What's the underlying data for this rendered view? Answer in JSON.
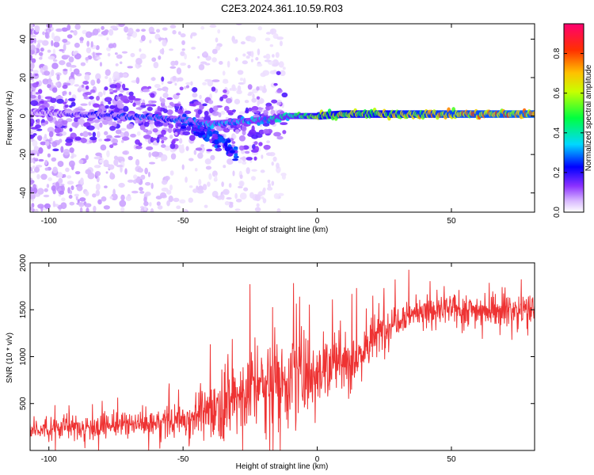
{
  "title": "C2E3.2024.361.10.59.R03",
  "chart_data": [
    {
      "type": "heatmap",
      "xlabel": "Height of straight line (km)",
      "ylabel": "Frequency (Hz)",
      "xlim": [
        -107,
        81
      ],
      "ylim": [
        -50,
        48
      ],
      "xticks": [
        -100,
        -50,
        0,
        50
      ],
      "yticks": [
        -40,
        -20,
        0,
        20,
        40
      ],
      "colorbar": {
        "label": "Normalized spectral amplitude",
        "range": [
          0,
          0.95
        ],
        "ticks": [
          0.0,
          0.2,
          0.4,
          0.6,
          0.8
        ],
        "colors": [
          "#ffffff",
          "#c090ff",
          "#6a00ff",
          "#0000ff",
          "#00ffff",
          "#00ff00",
          "#ffff00",
          "#ff8000",
          "#ff0000",
          "#ff0080"
        ]
      },
      "ridge": {
        "x": [
          -107,
          -90,
          -75,
          -60,
          -50,
          -40,
          -30,
          -20,
          -10,
          0,
          10,
          20,
          30,
          50,
          81
        ],
        "frequency": [
          2,
          1,
          0,
          -1,
          -2,
          -4,
          -3,
          -2,
          0,
          0,
          1,
          1,
          1,
          1,
          1
        ],
        "amplitude": [
          0.15,
          0.2,
          0.25,
          0.3,
          0.3,
          0.35,
          0.35,
          0.4,
          0.45,
          0.6,
          0.65,
          0.6,
          0.7,
          0.75,
          0.8
        ]
      },
      "branch": {
        "x": [
          -50,
          -42,
          -35,
          -30
        ],
        "frequency": [
          -2,
          -8,
          -14,
          -20
        ]
      }
    },
    {
      "type": "line",
      "xlabel": "Height of straight line (km)",
      "ylabel": "SNR (10 * v/v)",
      "xlim": [
        -107,
        81
      ],
      "ylim": [
        0,
        2000
      ],
      "xticks": [
        -100,
        -50,
        0,
        50
      ],
      "yticks": [
        500,
        1000,
        1500,
        2000
      ],
      "series": [
        {
          "color": "#ee3333",
          "x": [
            -107,
            -100,
            -90,
            -80,
            -70,
            -60,
            -55,
            -50,
            -45,
            -40,
            -35,
            -30,
            -25,
            -20,
            -15,
            -10,
            -5,
            0,
            5,
            10,
            15,
            20,
            25,
            30,
            35,
            40,
            50,
            60,
            70,
            81
          ],
          "mean": [
            240,
            250,
            250,
            260,
            270,
            290,
            310,
            330,
            380,
            430,
            500,
            580,
            660,
            700,
            740,
            780,
            820,
            870,
            920,
            950,
            1000,
            1150,
            1300,
            1420,
            1460,
            1480,
            1500,
            1500,
            1500,
            1500
          ],
          "spread": [
            110,
            110,
            110,
            110,
            120,
            130,
            140,
            170,
            200,
            260,
            320,
            380,
            420,
            440,
            440,
            420,
            400,
            370,
            340,
            300,
            260,
            230,
            200,
            170,
            150,
            150,
            150,
            150,
            150,
            150
          ]
        }
      ]
    }
  ]
}
